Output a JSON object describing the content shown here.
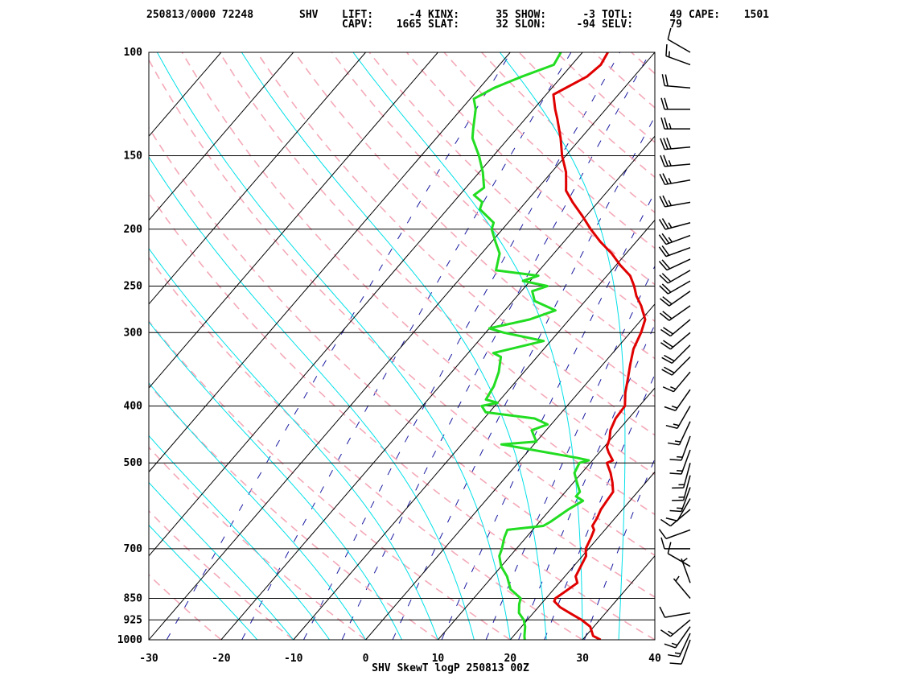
{
  "header": {
    "station_time": "250813/0000 72248",
    "station_id": "SHV",
    "indices": [
      {
        "label": "LIFT:",
        "value": "-4"
      },
      {
        "label": "KINX:",
        "value": "35"
      },
      {
        "label": "SHOW:",
        "value": "-3"
      },
      {
        "label": "TOTL:",
        "value": "49"
      },
      {
        "label": "CAPE:",
        "value": "1501"
      },
      {
        "label": "CAPV:",
        "value": "1665"
      },
      {
        "label": "SLAT:",
        "value": "32"
      },
      {
        "label": "SLON:",
        "value": "-94"
      },
      {
        "label": "SELV:",
        "value": "79"
      }
    ]
  },
  "chart_data": {
    "type": "line",
    "title": "SHV SkewT logP 250813 00Z",
    "xlim": [
      -30,
      40
    ],
    "ylim": [
      1000,
      100
    ],
    "y_scale": "log",
    "x_ticks": [
      "-30",
      "-20",
      "-10",
      "0",
      "10",
      "20",
      "30",
      "40"
    ],
    "x_tick_values": [
      -30,
      -20,
      -10,
      0,
      10,
      20,
      30,
      40
    ],
    "y_ticks": [
      "100",
      "150",
      "200",
      "250",
      "300",
      "400",
      "500",
      "700",
      "850",
      "925",
      "1000"
    ],
    "y_tick_values": [
      100,
      150,
      200,
      250,
      300,
      400,
      500,
      700,
      850,
      925,
      1000
    ],
    "colors": {
      "temperature": "#e00000",
      "dewpoint": "#22dd22",
      "dry_adiabat": "#f4a9b8",
      "moist_adiabat": "#00e0e8",
      "mixing_ratio": "#1a1aa0",
      "isotherm": "#000000",
      "isobar": "#000000",
      "barb": "#000000"
    },
    "series": [
      {
        "points": [
          [
            1000,
            32.5
          ],
          [
            985,
            31.0
          ],
          [
            950,
            29.5
          ],
          [
            925,
            27.5
          ],
          [
            900,
            25.0
          ],
          [
            880,
            23.0
          ],
          [
            860,
            21.5
          ],
          [
            850,
            21.3
          ],
          [
            830,
            21.8
          ],
          [
            800,
            22.5
          ],
          [
            780,
            21.5
          ],
          [
            750,
            21.0
          ],
          [
            720,
            20.5
          ],
          [
            700,
            19.6
          ],
          [
            670,
            19.0
          ],
          [
            650,
            18.5
          ],
          [
            640,
            17.8
          ],
          [
            620,
            17.5
          ],
          [
            600,
            17.0
          ],
          [
            580,
            16.8
          ],
          [
            560,
            16.6
          ],
          [
            540,
            15.4
          ],
          [
            520,
            14.0
          ],
          [
            500,
            12.3
          ],
          [
            495,
            12.8
          ],
          [
            480,
            11.3
          ],
          [
            470,
            10.4
          ],
          [
            455,
            9.8
          ],
          [
            440,
            8.9
          ],
          [
            420,
            8.2
          ],
          [
            400,
            8.0
          ],
          [
            380,
            6.5
          ],
          [
            360,
            5.2
          ],
          [
            340,
            3.8
          ],
          [
            320,
            2.4
          ],
          [
            300,
            1.5
          ],
          [
            285,
            0.5
          ],
          [
            270,
            -1.7
          ],
          [
            260,
            -3.5
          ],
          [
            250,
            -5.0
          ],
          [
            240,
            -6.8
          ],
          [
            230,
            -9.5
          ],
          [
            220,
            -12.0
          ],
          [
            210,
            -15.0
          ],
          [
            200,
            -17.8
          ],
          [
            190,
            -20.5
          ],
          [
            180,
            -23.5
          ],
          [
            172,
            -25.8
          ],
          [
            168,
            -26.5
          ],
          [
            160,
            -28.0
          ],
          [
            150,
            -30.5
          ],
          [
            140,
            -32.8
          ],
          [
            130,
            -35.5
          ],
          [
            125,
            -37.0
          ],
          [
            118,
            -39.0
          ],
          [
            110,
            -36.5
          ],
          [
            105,
            -36.0
          ],
          [
            100,
            -36.5
          ]
        ]
      },
      {
        "points": [
          [
            1000,
            22.0
          ],
          [
            985,
            21.5
          ],
          [
            950,
            20.5
          ],
          [
            925,
            19.5
          ],
          [
            900,
            18.0
          ],
          [
            870,
            17.0
          ],
          [
            850,
            16.5
          ],
          [
            820,
            14.0
          ],
          [
            780,
            12.0
          ],
          [
            750,
            10.0
          ],
          [
            720,
            8.5
          ],
          [
            700,
            8.0
          ],
          [
            670,
            7.0
          ],
          [
            650,
            6.5
          ],
          [
            640,
            11.0
          ],
          [
            630,
            11.5
          ],
          [
            600,
            12.5
          ],
          [
            580,
            13.5
          ],
          [
            570,
            12.0
          ],
          [
            560,
            12.0
          ],
          [
            540,
            10.5
          ],
          [
            520,
            9.0
          ],
          [
            500,
            8.5
          ],
          [
            495,
            9.5
          ],
          [
            490,
            7.5
          ],
          [
            470,
            -2.0
          ],
          [
            465,
            -4.5
          ],
          [
            460,
            0.0
          ],
          [
            440,
            -2.0
          ],
          [
            430,
            -0.5
          ],
          [
            420,
            -3.0
          ],
          [
            410,
            -10.5
          ],
          [
            400,
            -11.8
          ],
          [
            395,
            -10.0
          ],
          [
            390,
            -12.0
          ],
          [
            370,
            -12.5
          ],
          [
            350,
            -13.5
          ],
          [
            330,
            -15.0
          ],
          [
            325,
            -16.5
          ],
          [
            310,
            -11.0
          ],
          [
            300,
            -17.5
          ],
          [
            295,
            -20.0
          ],
          [
            285,
            -15.5
          ],
          [
            275,
            -13.0
          ],
          [
            265,
            -17.0
          ],
          [
            255,
            -18.5
          ],
          [
            250,
            -17.0
          ],
          [
            245,
            -21.0
          ],
          [
            240,
            -19.5
          ],
          [
            235,
            -26.0
          ],
          [
            220,
            -27.5
          ],
          [
            210,
            -29.5
          ],
          [
            200,
            -31.5
          ],
          [
            195,
            -32.0
          ],
          [
            185,
            -35.5
          ],
          [
            180,
            -36.0
          ],
          [
            175,
            -38.0
          ],
          [
            170,
            -37.5
          ],
          [
            160,
            -39.5
          ],
          [
            150,
            -42.0
          ],
          [
            140,
            -45.0
          ],
          [
            135,
            -46.0
          ],
          [
            125,
            -48.0
          ],
          [
            120,
            -49.5
          ],
          [
            115,
            -48.0
          ],
          [
            110,
            -45.5
          ],
          [
            105,
            -42.5
          ],
          [
            100,
            -43.0
          ]
        ]
      }
    ],
    "wind_barbs": [
      {
        "p": 1000,
        "dir": 200,
        "spd": 10
      },
      {
        "p": 975,
        "dir": 205,
        "spd": 15
      },
      {
        "p": 950,
        "dir": 215,
        "spd": 15
      },
      {
        "p": 925,
        "dir": 230,
        "spd": 15
      },
      {
        "p": 900,
        "dir": 260,
        "spd": 10
      },
      {
        "p": 850,
        "dir": 320,
        "spd": 5
      },
      {
        "p": 800,
        "dir": 340,
        "spd": 5
      },
      {
        "p": 750,
        "dir": 300,
        "spd": 10
      },
      {
        "p": 700,
        "dir": 270,
        "spd": 10
      },
      {
        "p": 650,
        "dir": 250,
        "spd": 10
      },
      {
        "p": 600,
        "dir": 230,
        "spd": 10
      },
      {
        "p": 575,
        "dir": 210,
        "spd": 10
      },
      {
        "p": 550,
        "dir": 200,
        "spd": 15
      },
      {
        "p": 525,
        "dir": 195,
        "spd": 15
      },
      {
        "p": 500,
        "dir": 195,
        "spd": 15
      },
      {
        "p": 475,
        "dir": 200,
        "spd": 15
      },
      {
        "p": 450,
        "dir": 200,
        "spd": 15
      },
      {
        "p": 425,
        "dir": 205,
        "spd": 15
      },
      {
        "p": 400,
        "dir": 210,
        "spd": 15
      },
      {
        "p": 375,
        "dir": 215,
        "spd": 15
      },
      {
        "p": 350,
        "dir": 220,
        "spd": 15
      },
      {
        "p": 330,
        "dir": 225,
        "spd": 20
      },
      {
        "p": 315,
        "dir": 225,
        "spd": 20
      },
      {
        "p": 300,
        "dir": 230,
        "spd": 20
      },
      {
        "p": 285,
        "dir": 230,
        "spd": 20
      },
      {
        "p": 270,
        "dir": 235,
        "spd": 20
      },
      {
        "p": 255,
        "dir": 235,
        "spd": 20
      },
      {
        "p": 245,
        "dir": 240,
        "spd": 20
      },
      {
        "p": 235,
        "dir": 240,
        "spd": 20
      },
      {
        "p": 225,
        "dir": 245,
        "spd": 20
      },
      {
        "p": 215,
        "dir": 250,
        "spd": 20
      },
      {
        "p": 205,
        "dir": 250,
        "spd": 25
      },
      {
        "p": 195,
        "dir": 255,
        "spd": 25
      },
      {
        "p": 180,
        "dir": 260,
        "spd": 25
      },
      {
        "p": 165,
        "dir": 260,
        "spd": 25
      },
      {
        "p": 155,
        "dir": 265,
        "spd": 25
      },
      {
        "p": 145,
        "dir": 265,
        "spd": 30
      },
      {
        "p": 135,
        "dir": 270,
        "spd": 25
      },
      {
        "p": 125,
        "dir": 270,
        "spd": 20
      },
      {
        "p": 115,
        "dir": 275,
        "spd": 20
      },
      {
        "p": 105,
        "dir": 290,
        "spd": 15
      },
      {
        "p": 100,
        "dir": 300,
        "spd": 10
      }
    ],
    "mixing_ratios_gkg": [
      0.4,
      1,
      2,
      3,
      5,
      8,
      12,
      16,
      20,
      28
    ],
    "dry_adiabats_c": [
      -40,
      -30,
      -20,
      -10,
      0,
      10,
      20,
      30,
      40,
      50,
      60,
      70,
      80,
      90,
      100,
      110,
      120,
      130,
      140,
      150,
      160,
      170,
      180,
      190
    ],
    "moist_adiabats_c": [
      -15,
      -10,
      -5,
      0,
      5,
      10,
      15,
      20,
      25,
      30,
      35
    ]
  }
}
